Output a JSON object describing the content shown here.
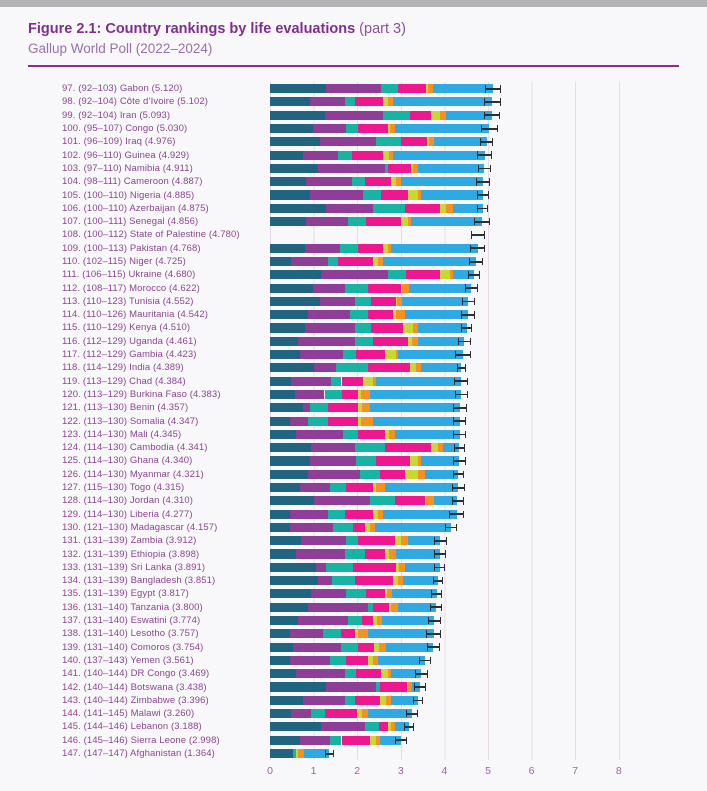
{
  "header": {
    "title_bold": "Figure 2.1: Country rankings by life evaluations",
    "title_part": "(part 3)",
    "subtitle": "Gallup World Poll (2022–2024)"
  },
  "chart_data": {
    "type": "bar",
    "orientation": "horizontal-stacked",
    "title": "Figure 2.1: Country rankings by life evaluations (part 3)",
    "subtitle": "Gallup World Poll (2022–2024)",
    "xlabel": "",
    "ylabel": "",
    "xlim": [
      0,
      8
    ],
    "x_ticks": [
      0,
      1,
      2,
      3,
      4,
      5,
      6,
      7,
      8
    ],
    "grid": "vertical",
    "legend_position": "none",
    "error_bars": true,
    "segments": [
      {
        "key": "dark-blue",
        "color": "#20647f"
      },
      {
        "key": "purple",
        "color": "#8e3e97"
      },
      {
        "key": "teal",
        "color": "#17b3a3"
      },
      {
        "key": "magenta",
        "color": "#ee1790"
      },
      {
        "key": "yellow-green",
        "color": "#c5d932"
      },
      {
        "key": "orange",
        "color": "#f59120"
      },
      {
        "key": "light-blue",
        "color": "#2fa9e1"
      }
    ],
    "countries": [
      {
        "rank": 97,
        "range": "(92–103)",
        "name": "Gabon",
        "score": "5.120",
        "ci": 0.18,
        "values": [
          1.28,
          1.26,
          0.39,
          0.65,
          0.04,
          0.12,
          1.38
        ]
      },
      {
        "rank": 98,
        "range": "(92–104)",
        "name": "Côte d’Ivoire",
        "score": "5.102",
        "ci": 0.2,
        "values": [
          0.91,
          0.8,
          0.23,
          0.65,
          0.12,
          0.11,
          2.28
        ]
      },
      {
        "rank": 99,
        "range": "(92–104)",
        "name": "Iran",
        "score": "5.093",
        "ci": 0.18,
        "values": [
          1.25,
          1.34,
          0.61,
          0.5,
          0.19,
          0.15,
          1.05
        ]
      },
      {
        "rank": 100,
        "range": "(95–107)",
        "name": "Congo",
        "score": "5.030",
        "ci": 0.2,
        "values": [
          0.99,
          0.76,
          0.27,
          0.69,
          0.05,
          0.1,
          2.17
        ]
      },
      {
        "rank": 101,
        "range": "(96–109)",
        "name": "Iraq",
        "score": "4.976",
        "ci": 0.15,
        "values": [
          1.14,
          1.3,
          0.57,
          0.58,
          0.05,
          0.12,
          1.21
        ]
      },
      {
        "rank": 102,
        "range": "(96–110)",
        "name": "Guinea",
        "score": "4.929",
        "ci": 0.17,
        "values": [
          0.76,
          0.8,
          0.31,
          0.72,
          0.15,
          0.08,
          2.11
        ]
      },
      {
        "rank": 103,
        "range": "(97–110)",
        "name": "Namibia",
        "score": "4.911",
        "ci": 0.15,
        "values": [
          1.1,
          1.53,
          0.08,
          0.53,
          0.03,
          0.12,
          1.52
        ]
      },
      {
        "rank": 104,
        "range": "(98–111)",
        "name": "Cameroon",
        "score": "4.887",
        "ci": 0.16,
        "values": [
          0.83,
          1.04,
          0.3,
          0.61,
          0.12,
          0.1,
          1.89
        ]
      },
      {
        "rank": 105,
        "range": "(100–110)",
        "name": "Nigeria",
        "score": "4.885",
        "ci": 0.14,
        "values": [
          0.91,
          1.22,
          0.42,
          0.62,
          0.22,
          0.08,
          1.42
        ]
      },
      {
        "rank": 106,
        "range": "(100–110)",
        "name": "Azerbaijan",
        "score": "4.875",
        "ci": 0.13,
        "values": [
          1.29,
          1.07,
          0.73,
          0.8,
          0.15,
          0.16,
          0.68
        ]
      },
      {
        "rank": 107,
        "range": "(100–111)",
        "name": "Senegal",
        "score": "4.856",
        "ci": 0.18,
        "values": [
          0.83,
          0.96,
          0.42,
          0.8,
          0.16,
          0.07,
          1.62
        ]
      },
      {
        "rank": 108,
        "range": "(100–112)",
        "name": "State of Palestine",
        "score": "4.780",
        "ci": 0.16,
        "values": null
      },
      {
        "rank": 109,
        "range": "(100–113)",
        "name": "Pakistan",
        "score": "4.768",
        "ci": 0.17,
        "values": [
          0.8,
          0.8,
          0.42,
          0.57,
          0.12,
          0.07,
          1.99
        ]
      },
      {
        "rank": 110,
        "range": "(102–115)",
        "name": "Niger",
        "score": "4.725",
        "ci": 0.16,
        "values": [
          0.49,
          0.84,
          0.23,
          0.8,
          0.12,
          0.11,
          2.13
        ]
      },
      {
        "rank": 111,
        "range": "(106–115)",
        "name": "Ukraine",
        "score": "4.680",
        "ci": 0.14,
        "values": [
          1.18,
          1.53,
          0.42,
          0.76,
          0.23,
          0.08,
          0.48
        ]
      },
      {
        "rank": 112,
        "range": "(108–117)",
        "name": "Morocco",
        "score": "4.622",
        "ci": 0.14,
        "values": [
          0.99,
          0.72,
          0.54,
          0.76,
          0.01,
          0.16,
          1.44
        ]
      },
      {
        "rank": 113,
        "range": "(110–123)",
        "name": "Tunisia",
        "score": "4.552",
        "ci": 0.14,
        "values": [
          1.14,
          0.8,
          0.38,
          0.58,
          0.02,
          0.11,
          1.52
        ]
      },
      {
        "rank": 114,
        "range": "(110–126)",
        "name": "Mauritania",
        "score": "4.542",
        "ci": 0.15,
        "values": [
          0.87,
          0.96,
          0.42,
          0.57,
          0.08,
          0.19,
          1.45
        ]
      },
      {
        "rank": 115,
        "range": "(110–129)",
        "name": "Kenya",
        "score": "4.510",
        "ci": 0.13,
        "values": [
          0.8,
          1.14,
          0.38,
          0.73,
          0.23,
          0.11,
          1.12
        ]
      },
      {
        "rank": 116,
        "range": "(112–129)",
        "name": "Uganda",
        "score": "4.461",
        "ci": 0.15,
        "values": [
          0.64,
          1.3,
          0.42,
          0.81,
          0.09,
          0.13,
          1.07
        ]
      },
      {
        "rank": 117,
        "range": "(112–129)",
        "name": "Gambia",
        "score": "4.423",
        "ci": 0.18,
        "values": [
          0.68,
          0.99,
          0.31,
          0.65,
          0.27,
          0.04,
          1.48
        ]
      },
      {
        "rank": 118,
        "range": "(114–129)",
        "name": "India",
        "score": "4.389",
        "ci": 0.1,
        "values": [
          1.02,
          0.5,
          0.73,
          0.95,
          0.16,
          0.11,
          0.92
        ]
      },
      {
        "rank": 119,
        "range": "(113–129)",
        "name": "Chad",
        "score": "4.384",
        "ci": 0.16,
        "values": [
          0.49,
          0.92,
          0.23,
          0.5,
          0.22,
          0.08,
          1.94
        ]
      },
      {
        "rank": 120,
        "range": "(113–129)",
        "name": "Burkina Faso",
        "score": "4.383",
        "ci": 0.15,
        "values": [
          0.57,
          0.68,
          0.39,
          0.38,
          0.07,
          0.2,
          2.09
        ]
      },
      {
        "rank": 121,
        "range": "(113–130)",
        "name": "Benin",
        "score": "4.357",
        "ci": 0.16,
        "values": [
          0.76,
          0.15,
          0.42,
          0.69,
          0.08,
          0.19,
          2.07
        ]
      },
      {
        "rank": 122,
        "range": "(113–130)",
        "name": "Somalia",
        "score": "4.347",
        "ci": 0.15,
        "values": [
          0.45,
          0.42,
          0.46,
          0.69,
          0.07,
          0.27,
          1.99
        ]
      },
      {
        "rank": 123,
        "range": "(114–130)",
        "name": "Mali",
        "score": "4.345",
        "ci": 0.15,
        "values": [
          0.6,
          1.07,
          0.35,
          0.61,
          0.11,
          0.12,
          1.49
        ]
      },
      {
        "rank": 124,
        "range": "(114–130)",
        "name": "Cambodia",
        "score": "4.341",
        "ci": 0.13,
        "values": [
          0.95,
          0.99,
          0.69,
          1.07,
          0.15,
          0.12,
          0.37
        ]
      },
      {
        "rank": 125,
        "range": "(114–130)",
        "name": "Ghana",
        "score": "4.340",
        "ci": 0.15,
        "values": [
          0.91,
          1.07,
          0.46,
          0.76,
          0.19,
          0.08,
          0.87
        ]
      },
      {
        "rank": 126,
        "range": "(114–130)",
        "name": "Myanmar",
        "score": "4.321",
        "ci": 0.13,
        "values": [
          0.87,
          1.19,
          0.46,
          0.57,
          0.3,
          0.16,
          0.77
        ]
      },
      {
        "rank": 127,
        "range": "(115–130)",
        "name": "Togo",
        "score": "4.315",
        "ci": 0.15,
        "values": [
          0.68,
          0.69,
          0.38,
          0.61,
          0.08,
          0.19,
          1.68
        ]
      },
      {
        "rank": 128,
        "range": "(114–130)",
        "name": "Jordan",
        "score": "4.310",
        "ci": 0.14,
        "values": [
          1.02,
          1.27,
          0.57,
          0.69,
          0.02,
          0.19,
          0.54
        ]
      },
      {
        "rank": 129,
        "range": "(114–130)",
        "name": "Liberia",
        "score": "4.277",
        "ci": 0.17,
        "values": [
          0.45,
          0.88,
          0.38,
          0.65,
          0.12,
          0.11,
          1.69
        ]
      },
      {
        "rank": 130,
        "range": "(121–130)",
        "name": "Madagascar",
        "score": "4.157",
        "ci": 0.14,
        "values": [
          0.45,
          0.99,
          0.46,
          0.27,
          0.12,
          0.11,
          1.76
        ]
      },
      {
        "rank": 131,
        "range": "(131–139)",
        "name": "Zambia",
        "score": "3.912",
        "ci": 0.14,
        "values": [
          0.72,
          1.03,
          0.27,
          0.84,
          0.15,
          0.16,
          0.74
        ]
      },
      {
        "rank": 132,
        "range": "(131–139)",
        "name": "Ethiopia",
        "score": "3.898",
        "ci": 0.13,
        "values": [
          0.6,
          1.11,
          0.46,
          0.46,
          0.11,
          0.16,
          1.0
        ]
      },
      {
        "rank": 133,
        "range": "(131–139)",
        "name": "Sri Lanka",
        "score": "3.891",
        "ci": 0.12,
        "values": [
          1.06,
          0.23,
          0.61,
          1.0,
          0.07,
          0.12,
          0.8
        ]
      },
      {
        "rank": 134,
        "range": "(131–139)",
        "name": "Bangladesh",
        "score": "3.851",
        "ci": 0.12,
        "values": [
          1.11,
          0.31,
          0.54,
          0.85,
          0.12,
          0.12,
          0.8
        ]
      },
      {
        "rank": 135,
        "range": "(131–139)",
        "name": "Egypt",
        "score": "3.817",
        "ci": 0.13,
        "values": [
          0.95,
          0.8,
          0.46,
          0.42,
          0.06,
          0.11,
          1.02
        ]
      },
      {
        "rank": 136,
        "range": "(131–140)",
        "name": "Tanzania",
        "score": "3.800",
        "ci": 0.14,
        "values": [
          0.87,
          1.38,
          0.11,
          0.38,
          0.04,
          0.15,
          0.87
        ]
      },
      {
        "rank": 137,
        "range": "(131–140)",
        "name": "Eswatini",
        "score": "3.774",
        "ci": 0.15,
        "values": [
          0.64,
          1.15,
          0.31,
          0.27,
          0.08,
          0.11,
          1.21
        ]
      },
      {
        "rank": 138,
        "range": "(131–140)",
        "name": "Lesotho",
        "score": "3.757",
        "ci": 0.17,
        "values": [
          0.45,
          0.76,
          0.42,
          0.31,
          0.08,
          0.23,
          1.51
        ]
      },
      {
        "rank": 139,
        "range": "(131–140)",
        "name": "Comoros",
        "score": "3.754",
        "ci": 0.15,
        "values": [
          0.53,
          1.1,
          0.38,
          0.38,
          0.11,
          0.15,
          1.1
        ]
      },
      {
        "rank": 140,
        "range": "(137–143)",
        "name": "Yemen",
        "score": "3.561",
        "ci": 0.14,
        "values": [
          0.45,
          0.92,
          0.38,
          0.5,
          0.11,
          0.11,
          1.09
        ]
      },
      {
        "rank": 141,
        "range": "(140–144)",
        "name": "DR Congo",
        "score": "3.469",
        "ci": 0.15,
        "values": [
          0.6,
          1.11,
          0.27,
          0.57,
          0.15,
          0.08,
          0.69
        ]
      },
      {
        "rank": 142,
        "range": "(140–144)",
        "name": "Botswana",
        "score": "3.438",
        "ci": 0.13,
        "values": [
          1.29,
          1.15,
          0.08,
          0.63,
          0.02,
          0.09,
          0.18
        ]
      },
      {
        "rank": 143,
        "range": "(140–144)",
        "name": "Zimbabwe",
        "score": "3.396",
        "ci": 0.12,
        "values": [
          0.76,
          0.96,
          0.23,
          0.57,
          0.15,
          0.11,
          0.62
        ]
      },
      {
        "rank": 144,
        "range": "(141–145)",
        "name": "Malawi",
        "score": "3.260",
        "ci": 0.13,
        "values": [
          0.49,
          0.46,
          0.31,
          0.73,
          0.11,
          0.15,
          1.01
        ]
      },
      {
        "rank": 145,
        "range": "(144–146)",
        "name": "Lebanon",
        "score": "3.188",
        "ci": 0.12,
        "values": [
          1.18,
          0.99,
          0.34,
          0.19,
          0.08,
          0.08,
          0.32
        ]
      },
      {
        "rank": 146,
        "range": "(145–146)",
        "name": "Sierra Leone",
        "score": "2.998",
        "ci": 0.14,
        "values": [
          0.68,
          0.69,
          0.27,
          0.65,
          0.15,
          0.08,
          0.48
        ]
      },
      {
        "rank": 147,
        "range": "(147–147)",
        "name": "Afghanistan",
        "score": "1.364",
        "ci": 0.1,
        "values": [
          0.53,
          0.0,
          0.06,
          0.0,
          0.06,
          0.14,
          0.57
        ]
      }
    ],
    "colors": {
      "title": "#7e2f8e",
      "subtitle": "#9a6fae",
      "label_text": "#8b4591",
      "tick_text": "#a05fa5",
      "gridline": "#e8dbe6",
      "whisker": "#2f2f33",
      "divider": "#8c2f8c"
    }
  }
}
